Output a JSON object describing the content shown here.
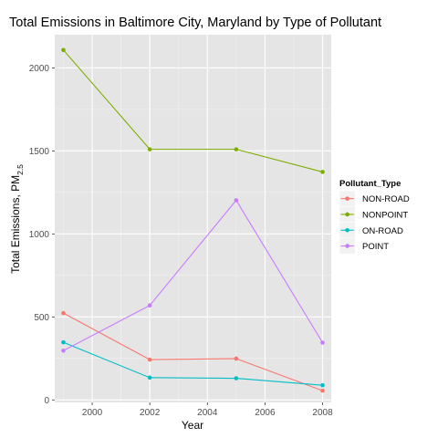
{
  "chart_data": {
    "type": "line",
    "title": "Total Emissions in Baltimore City, Maryland by Type of Pollutant",
    "xlabel": "Year",
    "ylabel": "Total Emissions, PM",
    "ylabel_subscript": "2.5",
    "x": [
      1999,
      2002,
      2005,
      2008
    ],
    "xlim": [
      1998.7,
      2008.3
    ],
    "ylim": [
      -15,
      2200
    ],
    "xticks": [
      2000,
      2002,
      2004,
      2006,
      2008
    ],
    "yticks": [
      0,
      500,
      1000,
      1500,
      2000
    ],
    "ytick_labels": [
      "0",
      "500",
      "1000",
      "1500",
      "2000"
    ],
    "xtick_labels": [
      "2000",
      "2002",
      "2004",
      "2006",
      "2008"
    ],
    "grid": true,
    "legend_title": "Pollutant_Type",
    "legend_position": "right",
    "series": [
      {
        "name": "NON-ROAD",
        "color": "#F8766D",
        "values": [
          522.9,
          242.7,
          248.9,
          55.8
        ]
      },
      {
        "name": "NONPOINT",
        "color": "#7CAE00",
        "values": [
          2107.6,
          1509.5,
          1509.5,
          1373.2
        ]
      },
      {
        "name": "ON-ROAD",
        "color": "#00BFC4",
        "values": [
          346.8,
          134.3,
          130.4,
          88.3
        ]
      },
      {
        "name": "POINT",
        "color": "#C77CFF",
        "values": [
          296.8,
          569.3,
          1202.5,
          344.98
        ]
      }
    ]
  }
}
